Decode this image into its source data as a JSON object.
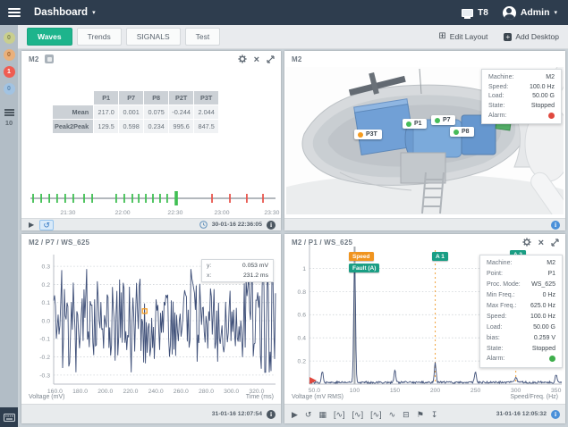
{
  "topbar": {
    "title": "Dashboard",
    "screen_label": "T8",
    "user_label": "Admin"
  },
  "tab_bar": {
    "tabs": [
      {
        "label": "Waves",
        "active": true
      },
      {
        "label": "Trends",
        "active": false
      },
      {
        "label": "SIGNALS",
        "active": false
      },
      {
        "label": "Test",
        "active": false
      }
    ],
    "edit_layout_label": "Edit Layout",
    "add_desktop_label": "Add Desktop"
  },
  "sidebar": {
    "badges": [
      {
        "count": "0",
        "bg": "#c9cf8e",
        "fg": "#7e8450"
      },
      {
        "count": "0",
        "bg": "#e9b07b",
        "fg": "#a4652f"
      },
      {
        "count": "1",
        "bg": "#ef5c51",
        "fg": "#ffffff"
      },
      {
        "count": "0",
        "bg": "#a2c3e2",
        "fg": "#5d88b0"
      }
    ],
    "queue_count": "10"
  },
  "overview_panel": {
    "title": "M2",
    "stats_table": {
      "corner": "",
      "columns": [
        "P1",
        "P7",
        "P8",
        "P2T",
        "P3T"
      ],
      "rows": [
        {
          "label": "Mean",
          "values": [
            "217.0",
            "0.001",
            "0.075",
            "-0.244",
            "2.044"
          ]
        },
        {
          "label": "Peak2Peak",
          "values": [
            "129.5",
            "0.598",
            "0.234",
            "995.6",
            "847.5"
          ]
        }
      ]
    },
    "timeline": {
      "color_ok": "#3fbf52",
      "color_alarm": "#e8564d",
      "labels": [
        {
          "text": "21:30",
          "p": 15.3
        },
        {
          "text": "22:00",
          "p": 37.6
        },
        {
          "text": "22:30",
          "p": 59.1
        },
        {
          "text": "23:00",
          "p": 78.1
        },
        {
          "text": "23:30",
          "p": 98.5
        }
      ],
      "ticks": [
        {
          "p": 1.1
        },
        {
          "p": 4.4
        },
        {
          "p": 7.7
        },
        {
          "p": 10.9
        },
        {
          "p": 14.2
        },
        {
          "p": 17.5
        },
        {
          "p": 21.9
        },
        {
          "p": 25.2
        },
        {
          "p": 35.0
        },
        {
          "p": 38.3
        },
        {
          "p": 41.6
        },
        {
          "p": 44.2
        },
        {
          "p": 47.1
        },
        {
          "p": 50.0
        },
        {
          "p": 52.9
        },
        {
          "p": 55.8
        },
        {
          "p": 59.5,
          "selected": true
        },
        {
          "p": 74.1,
          "alarm": true
        },
        {
          "p": 81.4,
          "alarm": true
        },
        {
          "p": 88.3,
          "alarm": true
        },
        {
          "p": 94.9,
          "alarm": true
        }
      ]
    },
    "footer": {
      "timestamp": "30-01-16 22:36:05"
    }
  },
  "machine_panel": {
    "title": "M2",
    "points": [
      {
        "label": "P3T",
        "color": "#f59b1e"
      },
      {
        "label": "P1",
        "color": "#47bb59"
      },
      {
        "label": "P7",
        "color": "#47bb59"
      },
      {
        "label": "P8",
        "color": "#47bb59"
      }
    ],
    "info": [
      {
        "label": "Machine:",
        "value": "M2"
      },
      {
        "label": "Speed:",
        "value": "100.0 Hz"
      },
      {
        "label": "Load:",
        "value": "50.00 G"
      },
      {
        "label": "State:",
        "value": "Stopped"
      },
      {
        "label": "Alarm:",
        "dot": "#e0493f"
      }
    ]
  },
  "waveform_panel": {
    "title": "M2 / P7 / WS_625",
    "cursor_box": [
      {
        "label": "y:",
        "value": "0.053 mV"
      },
      {
        "label": "x:",
        "value": "231.2 ms"
      }
    ],
    "ylabel": "Voltage (mV)",
    "xlabel": "Time (ms)",
    "footer": {
      "timestamp": "31-01-16 12:07:54"
    }
  },
  "spectrum_panel": {
    "title": "M2 / P1 / WS_625",
    "tags": [
      {
        "label": "Speed",
        "color": "#f0941f"
      },
      {
        "label": "Fault (A)",
        "color": "#1a9e84"
      },
      {
        "label": "A 1",
        "color": "#1a9e84"
      },
      {
        "label": "A 2",
        "color": "#1a9e84"
      }
    ],
    "info": [
      {
        "label": "Machine:",
        "value": "M2"
      },
      {
        "label": "Point:",
        "value": "P1"
      },
      {
        "label": "Proc. Mode:",
        "value": "WS_625"
      },
      {
        "label": "Min Freq.:",
        "value": "0 Hz"
      },
      {
        "label": "Max Freq.:",
        "value": "625.0 Hz"
      },
      {
        "label": "Speed:",
        "value": "100.0 Hz"
      },
      {
        "label": "Load:",
        "value": "50.00 G"
      },
      {
        "label": "bias:",
        "value": "0.259 V"
      },
      {
        "label": "State:",
        "value": "Stopped"
      },
      {
        "label": "Alarm:",
        "dot": "#3fae4c"
      }
    ],
    "ylabel": "Voltage (mV RMS)",
    "xlabel": "Speed/Freq. (Hz)",
    "footer": {
      "timestamp": "31-01-16 12:05:32",
      "icons": [
        {
          "name": "play-icon",
          "glyph": "▶"
        },
        {
          "name": "history-icon",
          "glyph": "↺"
        },
        {
          "name": "snapshot-icon",
          "glyph": "▦"
        },
        {
          "name": "single-cursor-icon",
          "glyph": "[∿]"
        },
        {
          "name": "harmonic-cursor-icon",
          "glyph": "[∿]"
        },
        {
          "name": "sideband-cursor-icon",
          "glyph": "[∿]"
        },
        {
          "name": "waveform-icon",
          "glyph": "∿"
        },
        {
          "name": "band-icon",
          "glyph": "⊟"
        },
        {
          "name": "flag-icon",
          "glyph": "⚑"
        },
        {
          "name": "download-icon",
          "glyph": "↧"
        }
      ]
    }
  },
  "chart_data": [
    {
      "id": "waveform",
      "type": "line",
      "title": "M2 / P7 / WS_625",
      "xlabel": "Time (ms)",
      "ylabel": "Voltage (mV)",
      "xlim": [
        159,
        335
      ],
      "ylim": [
        -0.35,
        0.35
      ],
      "x_ticks": [
        160,
        180,
        200,
        220,
        240,
        260,
        280,
        300,
        320
      ],
      "y_ticks": [
        0.3,
        0.2,
        0.1,
        0,
        -0.1,
        -0.2,
        -0.3
      ],
      "grid": "dotted-horizontal",
      "series_color": "#3e4f78",
      "signal": {
        "n": 250,
        "seed": 1319,
        "approx_peak_amplitude_mv": 0.28,
        "approx_rms_mv": 0.09
      },
      "cursor": {
        "x_ms": 231.2,
        "y_mv": 0.053
      }
    },
    {
      "id": "spectrum",
      "type": "line",
      "title": "M2 / P1 / WS_625",
      "xlabel": "Speed/Freq. (Hz)",
      "ylabel": "Voltage (mV RMS)",
      "xlim": [
        44,
        357
      ],
      "ylim": [
        0,
        1.22
      ],
      "x_ticks": [
        50,
        100,
        150,
        200,
        250,
        300,
        350
      ],
      "x_tick_labels": [
        "50.0",
        "100",
        "150",
        "200",
        "250",
        "300",
        "350"
      ],
      "y_ticks": [
        1,
        0.8,
        0.6,
        0.4,
        0.2
      ],
      "grid": "dotted-horizontal",
      "series_color": "#3e4f78",
      "peaks": [
        {
          "hz": 60,
          "mv_rms": 0.1
        },
        {
          "hz": 100,
          "mv_rms": 1.04
        },
        {
          "hz": 150,
          "mv_rms": 0.1
        },
        {
          "hz": 200,
          "mv_rms": 0.17
        },
        {
          "hz": 250,
          "mv_rms": 0.09
        },
        {
          "hz": 300,
          "mv_rms": 0.05
        },
        {
          "hz": 350,
          "mv_rms": 0.07
        }
      ],
      "noise_floor_mv": 0.02,
      "speed_marker_hz": 100,
      "cursor_marker_hz": [
        200,
        300
      ],
      "seed": 77
    }
  ]
}
